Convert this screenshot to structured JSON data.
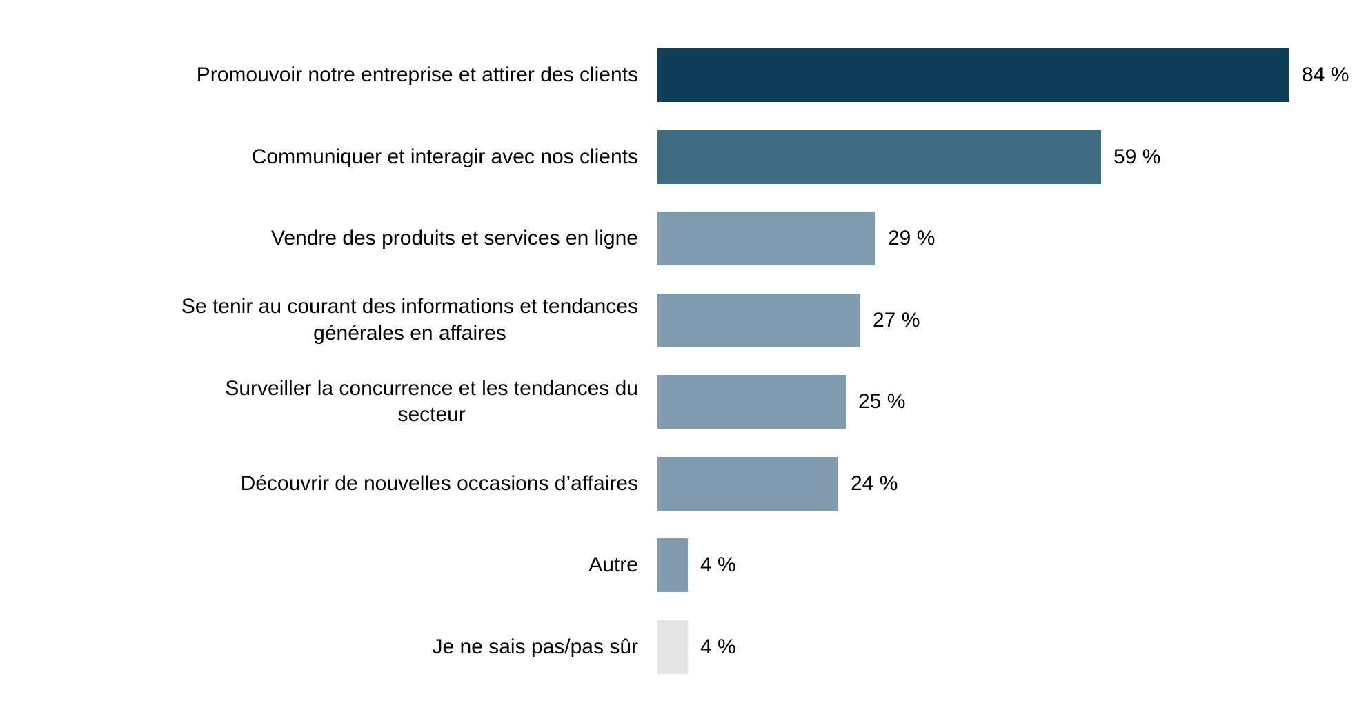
{
  "chart_data": {
    "type": "bar",
    "orientation": "horizontal",
    "title": "",
    "xlabel": "",
    "ylabel": "",
    "categories": [
      "Promouvoir notre entreprise et attirer des clients",
      "Communiquer et interagir avec nos clients",
      "Vendre des produits et services en ligne",
      "Se tenir au courant des informations et tendances\ngénérales en affaires",
      "Surveiller la concurrence et les tendances du\nsecteur",
      "Découvrir de nouvelles occasions d’affaires",
      "Autre",
      "Je ne sais pas/pas sûr"
    ],
    "values": [
      84,
      59,
      29,
      27,
      25,
      24,
      4,
      4
    ],
    "value_labels": [
      "84 %",
      "59 %",
      "29 %",
      "27 %",
      "25 %",
      "24 %",
      "4 %",
      "4 %"
    ],
    "bar_colors": [
      "#0e3d57",
      "#3e6a82",
      "#7f9bad",
      "#7f9bad",
      "#7f9bad",
      "#7f9bad",
      "#7f9bad",
      "#e4e4e4"
    ],
    "xlim": [
      0,
      87
    ],
    "grid": false,
    "legend": false,
    "axis_lines": false,
    "background_color": "#ffffff",
    "text_color": "#000000"
  }
}
